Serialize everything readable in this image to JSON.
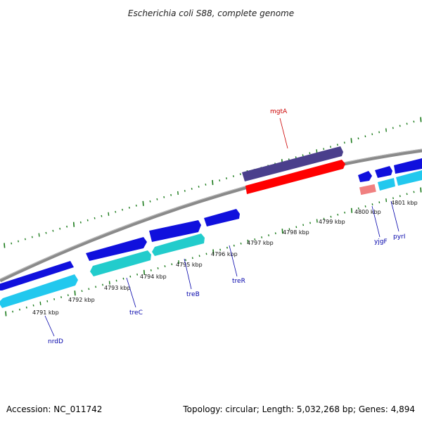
{
  "title": "Escherichia coli S88, complete genome",
  "footer": {
    "accession": "Accession: NC_011742",
    "summary": "Topology: circular; Length: 5,032,268 bp; Genes: 4,894"
  },
  "colors": {
    "backbone": "#8a8a8a",
    "tick": "#1a7a1a",
    "label_blue": "#0000aa",
    "label_red": "#cc0000",
    "gene_blue": "#1010dd",
    "gene_cyan": "#22c8ee",
    "gene_teal": "#22cccc",
    "gene_purple": "#4a3f8c",
    "gene_red": "#ff0000",
    "gene_pink": "#f08080"
  },
  "ticks": [
    {
      "label": "4791 kbp"
    },
    {
      "label": "4792 kbp"
    },
    {
      "label": "4793 kbp"
    },
    {
      "label": "4794 kbp"
    },
    {
      "label": "4795 kbp"
    },
    {
      "label": "4796 kbp"
    },
    {
      "label": "4797 kbp"
    },
    {
      "label": "4798 kbp"
    },
    {
      "label": "4799 kbp"
    },
    {
      "label": "4800 kbp"
    },
    {
      "label": "4801 kbp"
    }
  ],
  "gene_labels": [
    {
      "name": "nrdD",
      "color": "label_blue"
    },
    {
      "name": "treC",
      "color": "label_blue"
    },
    {
      "name": "treB",
      "color": "label_blue"
    },
    {
      "name": "treR",
      "color": "label_blue"
    },
    {
      "name": "mgtA",
      "color": "label_red"
    },
    {
      "name": "yjgF",
      "color": "label_blue"
    },
    {
      "name": "pyrI",
      "color": "label_blue"
    }
  ]
}
